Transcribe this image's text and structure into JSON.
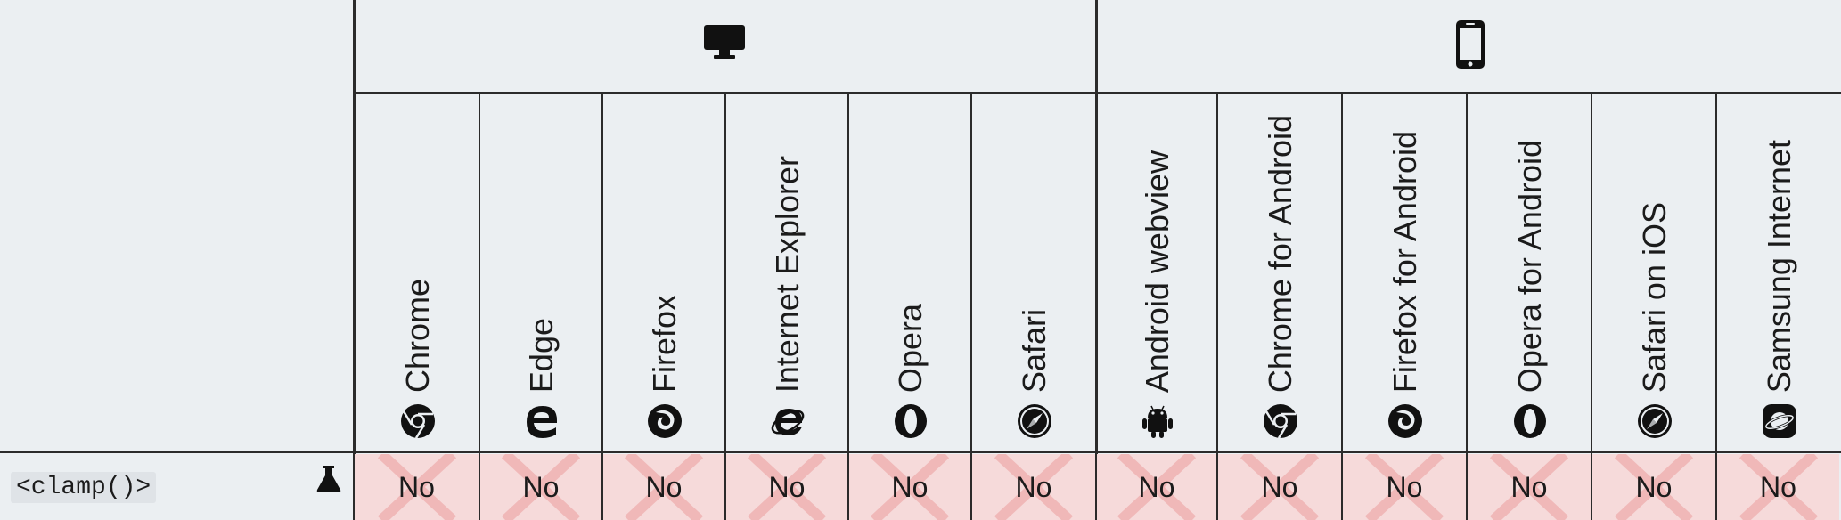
{
  "groups": {
    "desktop": {
      "icon": "desktop-icon"
    },
    "mobile": {
      "icon": "mobile-phone-icon"
    }
  },
  "browsers": [
    {
      "name": "Chrome",
      "icon": "chrome-icon",
      "support": "No"
    },
    {
      "name": "Edge",
      "icon": "edge-icon",
      "support": "No"
    },
    {
      "name": "Firefox",
      "icon": "firefox-icon",
      "support": "No"
    },
    {
      "name": "Internet Explorer",
      "icon": "internet-explorer-icon",
      "support": "No"
    },
    {
      "name": "Opera",
      "icon": "opera-icon",
      "support": "No"
    },
    {
      "name": "Safari",
      "icon": "safari-icon",
      "support": "No"
    },
    {
      "name": "Android webview",
      "icon": "android-icon",
      "support": "No"
    },
    {
      "name": "Chrome for Android",
      "icon": "chrome-icon",
      "support": "No"
    },
    {
      "name": "Firefox for Android",
      "icon": "firefox-icon",
      "support": "No"
    },
    {
      "name": "Opera for Android",
      "icon": "opera-icon",
      "support": "No"
    },
    {
      "name": "Safari on iOS",
      "icon": "safari-icon",
      "support": "No"
    },
    {
      "name": "Samsung Internet",
      "icon": "samsung-internet-icon",
      "support": "No"
    }
  ],
  "feature": {
    "name": "<clamp()>",
    "status_icon": "experimental-flask-icon"
  },
  "colors": {
    "background": "#ebeff2",
    "no_support_cell": "#f6dada",
    "no_support_cross": "#f0b8b8",
    "grid_lines": "#2b2b2b"
  }
}
